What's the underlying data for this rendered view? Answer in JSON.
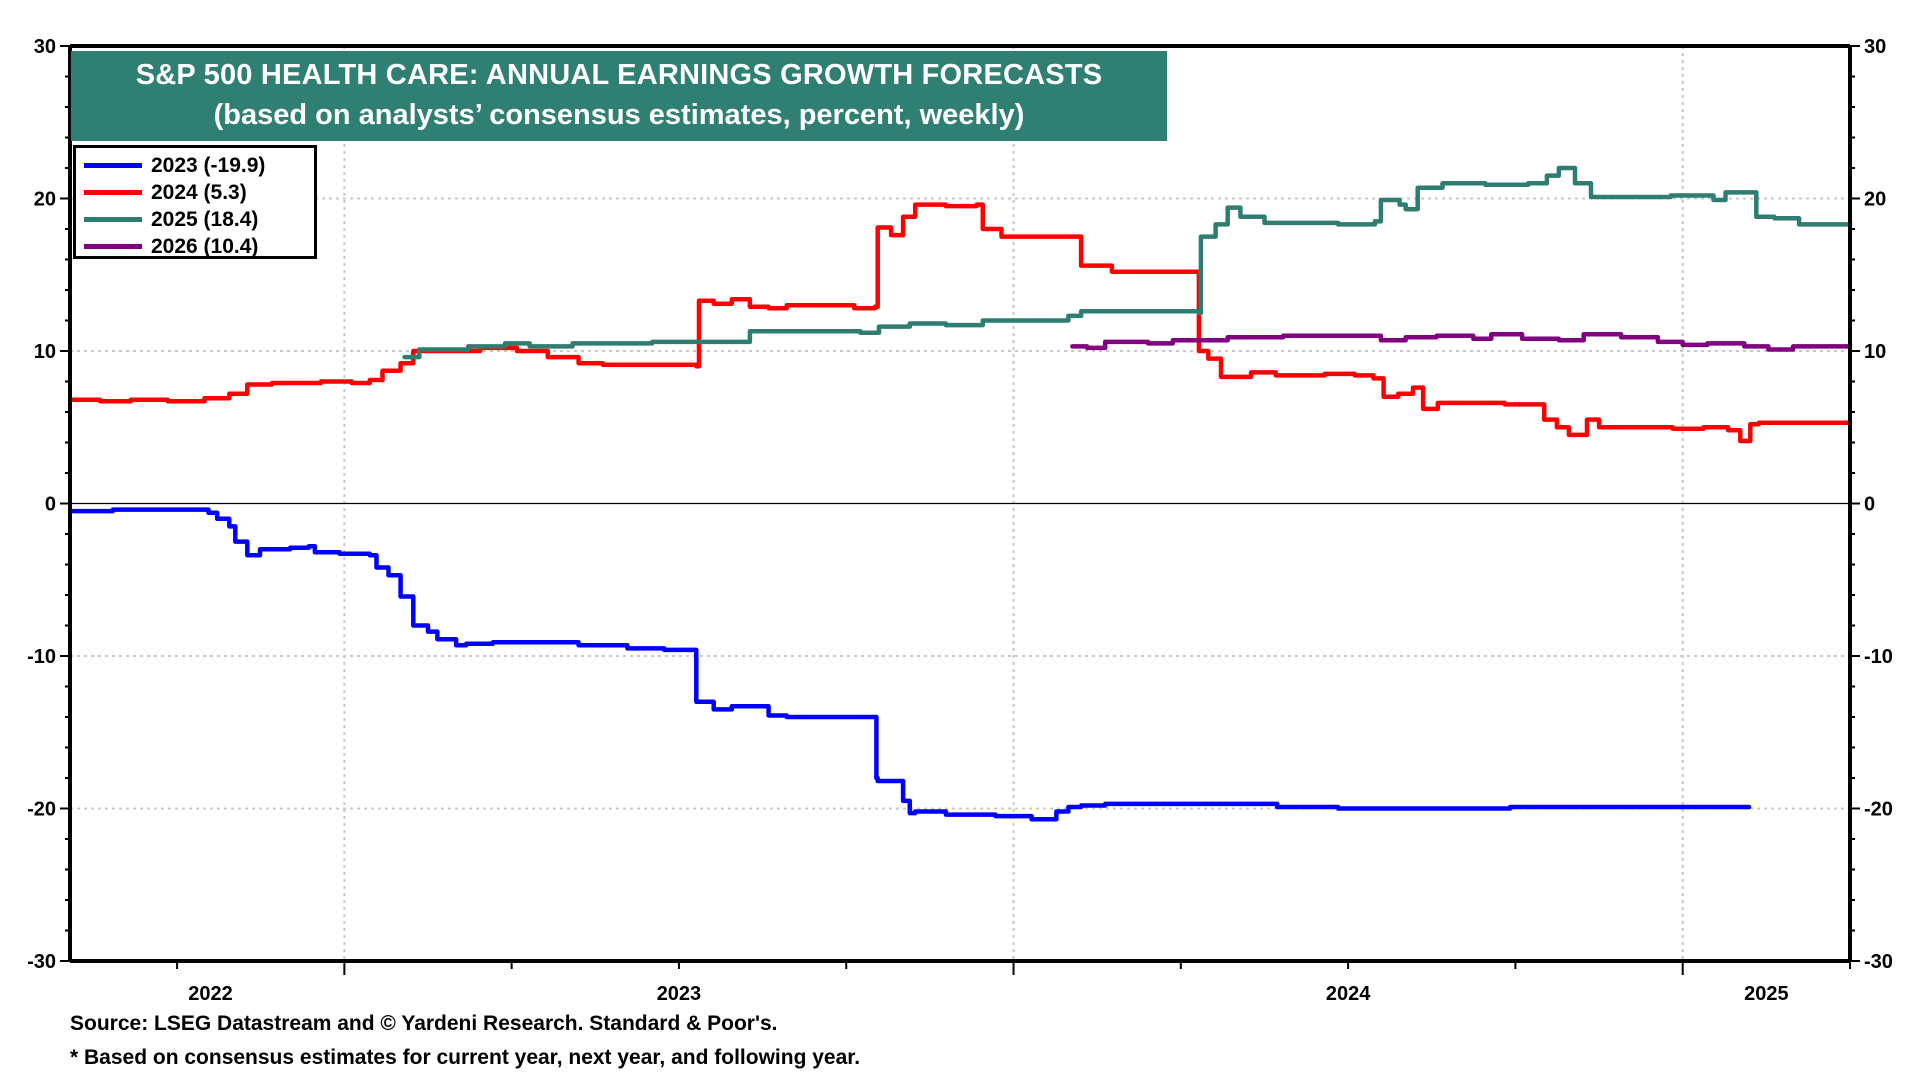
{
  "chart_data": {
    "type": "line",
    "title": "S&P 500 HEALTH CARE: ANNUAL EARNINGS GROWTH FORECASTS",
    "subtitle": "(based on analysts’ consensus estimates, percent, weekly)",
    "xlabel": "",
    "ylabel": "",
    "ylim": [
      -30,
      30
    ],
    "xlim": [
      2022.59,
      2025.25
    ],
    "yticks": [
      30,
      20,
      10,
      0,
      -10,
      -20,
      -30
    ],
    "ytick_labels": [
      "30",
      "20",
      "10",
      "0",
      "-10",
      "-20",
      "-30"
    ],
    "xtick_labels": [
      {
        "label": "2022",
        "x": 2022.8
      },
      {
        "label": "2023",
        "x": 2023.5
      },
      {
        "label": "2024",
        "x": 2024.5
      },
      {
        "label": "2025",
        "x": 2025.125
      }
    ],
    "year_gridlines": [
      2023,
      2024,
      2025
    ],
    "grid": true,
    "zero_line": true,
    "legend_position": "top-left",
    "series": [
      {
        "name": "2023 (-19.9)",
        "color": "#0000ff",
        "x": [
          2022.593,
          2022.654,
          2022.797,
          2022.81,
          2022.828,
          2022.837,
          2022.855,
          2022.874,
          2022.919,
          2022.947,
          2022.956,
          2022.993,
          2023.038,
          2023.048,
          2023.066,
          2023.084,
          2023.103,
          2023.125,
          2023.139,
          2023.167,
          2023.182,
          2023.222,
          2023.35,
          2023.423,
          2023.478,
          2023.526,
          2023.53,
          2023.552,
          2023.579,
          2023.606,
          2023.634,
          2023.661,
          2023.771,
          2023.795,
          2023.797,
          2023.835,
          2023.845,
          2023.853,
          2023.899,
          2023.973,
          2024.027,
          2024.064,
          2024.082,
          2024.101,
          2024.137,
          2024.394,
          2024.485,
          2024.742,
          2024.979,
          2025.099
        ],
        "y": [
          -0.5,
          -0.4,
          -0.6,
          -1.0,
          -1.5,
          -2.5,
          -3.4,
          -3.0,
          -2.9,
          -2.8,
          -3.2,
          -3.3,
          -3.4,
          -4.2,
          -4.7,
          -6.1,
          -8.0,
          -8.4,
          -8.9,
          -9.3,
          -9.2,
          -9.1,
          -9.3,
          -9.5,
          -9.6,
          -13.0,
          -13.0,
          -13.5,
          -13.3,
          -13.3,
          -13.9,
          -14.0,
          -14.0,
          -18.0,
          -18.2,
          -19.5,
          -20.3,
          -20.2,
          -20.4,
          -20.5,
          -20.7,
          -20.2,
          -19.9,
          -19.8,
          -19.7,
          -19.9,
          -20.0,
          -19.9,
          -19.9,
          -19.9
        ]
      },
      {
        "name": "2024 (5.3)",
        "color": "#ff0000",
        "x": [
          2022.593,
          2022.635,
          2022.681,
          2022.736,
          2022.791,
          2022.828,
          2022.855,
          2022.892,
          2022.965,
          2023.011,
          2023.038,
          2023.057,
          2023.084,
          2023.103,
          2023.203,
          2023.258,
          2023.304,
          2023.35,
          2023.386,
          2023.526,
          2023.53,
          2023.552,
          2023.579,
          2023.606,
          2023.634,
          2023.661,
          2023.698,
          2023.762,
          2023.793,
          2023.797,
          2023.817,
          2023.835,
          2023.853,
          2023.899,
          2023.945,
          2023.954,
          2023.982,
          2024.037,
          2024.101,
          2024.147,
          2024.275,
          2024.277,
          2024.291,
          2024.31,
          2024.355,
          2024.392,
          2024.465,
          2024.51,
          2024.538,
          2024.553,
          2024.575,
          2024.597,
          2024.612,
          2024.634,
          2024.689,
          2024.734,
          2024.78,
          2024.793,
          2024.812,
          2024.83,
          2024.857,
          2024.875,
          2024.949,
          2024.985,
          2025.031,
          2025.068,
          2025.086,
          2025.101,
          2025.114,
          2025.125,
          2025.25
        ],
        "y": [
          6.8,
          6.7,
          6.8,
          6.7,
          6.9,
          7.2,
          7.8,
          7.9,
          8.0,
          7.9,
          8.1,
          8.7,
          9.2,
          10.0,
          10.2,
          10.0,
          9.6,
          9.2,
          9.1,
          9.0,
          13.3,
          13.1,
          13.4,
          12.9,
          12.8,
          13.0,
          13.0,
          12.8,
          12.9,
          18.1,
          17.6,
          18.8,
          19.6,
          19.5,
          19.6,
          18.0,
          17.5,
          17.5,
          15.6,
          15.2,
          15.2,
          10.0,
          9.5,
          8.3,
          8.6,
          8.4,
          8.5,
          8.4,
          8.2,
          7.0,
          7.2,
          7.6,
          6.2,
          6.6,
          6.6,
          6.5,
          6.5,
          5.5,
          5.0,
          4.5,
          5.5,
          5.0,
          5.0,
          4.9,
          5.0,
          4.8,
          4.1,
          5.2,
          5.3,
          5.3,
          5.3
        ]
      },
      {
        "name": "2025 (18.4)",
        "color": "#2e7d70",
        "x": [
          2023.09,
          2023.112,
          2023.185,
          2023.24,
          2023.277,
          2023.341,
          2023.46,
          2023.588,
          2023.606,
          2023.661,
          2023.771,
          2023.799,
          2023.845,
          2023.899,
          2023.954,
          2024.046,
          2024.082,
          2024.101,
          2024.266,
          2024.277,
          2024.28,
          2024.302,
          2024.32,
          2024.339,
          2024.375,
          2024.485,
          2024.54,
          2024.549,
          2024.577,
          2024.586,
          2024.604,
          2024.641,
          2024.705,
          2024.769,
          2024.797,
          2024.815,
          2024.839,
          2024.863,
          2024.908,
          2024.982,
          2025.018,
          2025.046,
          2025.064,
          2025.101,
          2025.11,
          2025.137,
          2025.174,
          2025.22,
          2025.25
        ],
        "y": [
          9.6,
          10.1,
          10.3,
          10.5,
          10.3,
          10.5,
          10.6,
          10.6,
          11.3,
          11.3,
          11.2,
          11.6,
          11.8,
          11.7,
          12.0,
          12.0,
          12.3,
          12.6,
          12.6,
          12.5,
          17.5,
          18.3,
          19.4,
          18.8,
          18.4,
          18.3,
          18.5,
          19.9,
          19.6,
          19.3,
          20.7,
          21.0,
          20.9,
          21.0,
          21.5,
          22.0,
          21.0,
          20.1,
          20.1,
          20.2,
          20.2,
          19.9,
          20.4,
          20.4,
          18.8,
          18.7,
          18.3,
          18.3,
          18.4
        ]
      },
      {
        "name": "2026 (10.4)",
        "color": "#800080",
        "x": [
          2024.088,
          2024.11,
          2024.137,
          2024.174,
          2024.201,
          2024.238,
          2024.32,
          2024.403,
          2024.522,
          2024.549,
          2024.586,
          2024.632,
          2024.687,
          2024.714,
          2024.76,
          2024.815,
          2024.852,
          2024.908,
          2024.963,
          2025.0,
          2025.037,
          2025.092,
          2025.128,
          2025.165,
          2025.25
        ],
        "y": [
          10.3,
          10.2,
          10.6,
          10.6,
          10.5,
          10.7,
          10.9,
          11.0,
          11.0,
          10.7,
          10.9,
          11.0,
          10.8,
          11.1,
          10.8,
          10.7,
          11.1,
          10.9,
          10.6,
          10.4,
          10.5,
          10.3,
          10.1,
          10.3,
          10.4
        ]
      }
    ]
  },
  "footer": {
    "source": "Source: LSEG Datastream and © Yardeni Research. Standard & Poor's.",
    "note": "* Based on consensus estimates for current year, next year, and following year."
  }
}
